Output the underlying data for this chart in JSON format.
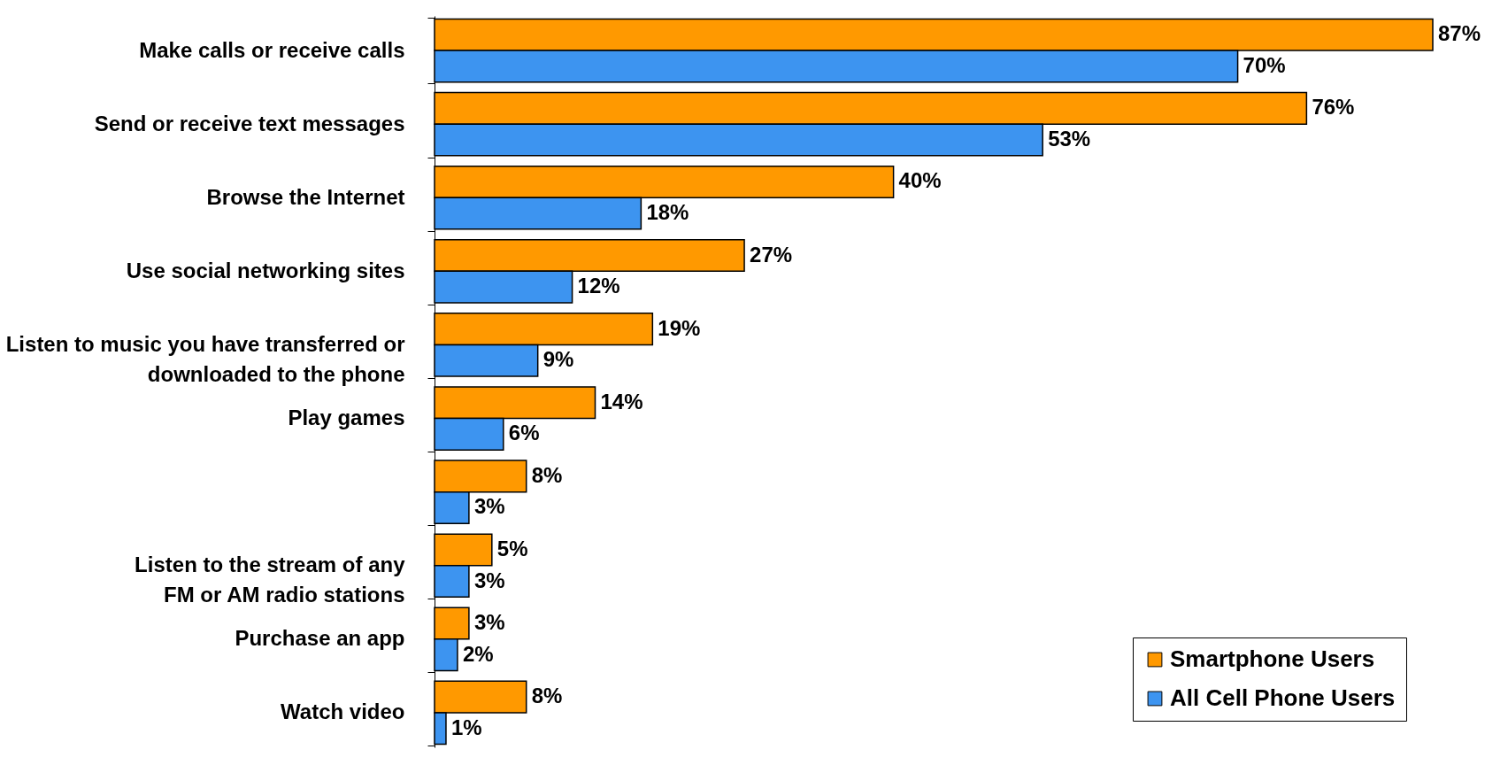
{
  "chart_data": {
    "type": "bar",
    "orientation": "horizontal",
    "categories": [
      "Make calls or receive calls",
      "Send or receive text messages",
      "Browse the Internet",
      "Use social networking sites",
      "Listen to music you have transferred or\ndownloaded to the phone",
      "Play games",
      null,
      "Listen to the stream of any\nFM or AM radio stations",
      "Purchase an app",
      "Watch video"
    ],
    "series": [
      {
        "name": "Smartphone Users",
        "color": "#ff9900",
        "values": [
          87,
          76,
          40,
          27,
          19,
          14,
          8,
          5,
          3,
          8
        ],
        "value_labels": [
          "87%",
          "76%",
          "40%",
          "27%",
          "19%",
          "14%",
          "8%",
          "5%",
          "3%",
          "8%"
        ]
      },
      {
        "name": "All Cell Phone Users",
        "color": "#3d94f0",
        "values": [
          70,
          53,
          18,
          12,
          9,
          6,
          3,
          3,
          2,
          1
        ],
        "value_labels": [
          "70%",
          "53%",
          "18%",
          "12%",
          "9%",
          "6%",
          "3%",
          "3%",
          "2%",
          "1%"
        ]
      }
    ],
    "legend": "bottom right"
  }
}
